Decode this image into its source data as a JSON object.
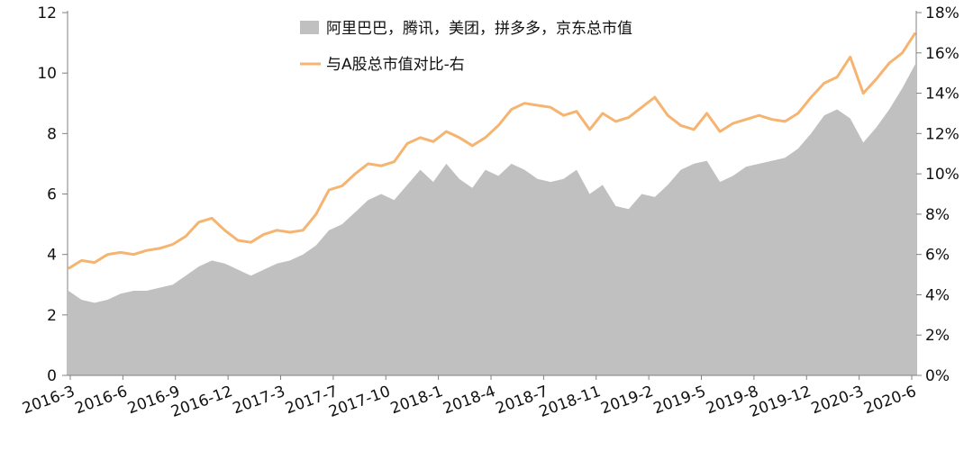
{
  "chart_data": {
    "type": "area",
    "title": "",
    "xlabel": "",
    "ylabel": "",
    "ylim": [
      0,
      12
    ],
    "y2lim": [
      0,
      0.18
    ],
    "yticks": [
      "0",
      "2",
      "4",
      "6",
      "8",
      "10",
      "12"
    ],
    "y2ticks": [
      "0%",
      "2%",
      "4%",
      "6%",
      "8%",
      "10%",
      "12%",
      "14%",
      "16%",
      "18%"
    ],
    "grid": false,
    "legend_position": "top-center",
    "x_tick_labels": [
      "2016-3",
      "2016-6",
      "2016-9",
      "2016-12",
      "2017-3",
      "2017-7",
      "2017-10",
      "2018-1",
      "2018-4",
      "2018-7",
      "2018-11",
      "2019-2",
      "2019-5",
      "2019-8",
      "2019-12",
      "2020-3",
      "2020-6"
    ],
    "series": [
      {
        "name": "阿里巴巴，腾讯，美团，拼多多，京东总市值",
        "type": "area",
        "axis": "left",
        "color": "#c0c0c0",
        "values": [
          2.8,
          2.5,
          2.4,
          2.5,
          2.7,
          2.8,
          2.8,
          2.9,
          3.0,
          3.3,
          3.6,
          3.8,
          3.7,
          3.5,
          3.3,
          3.5,
          3.7,
          3.8,
          4.0,
          4.3,
          4.8,
          5.0,
          5.4,
          5.8,
          6.0,
          5.8,
          6.3,
          6.8,
          6.4,
          7.0,
          6.5,
          6.2,
          6.8,
          6.6,
          7.0,
          6.8,
          6.5,
          6.4,
          6.5,
          6.8,
          6.0,
          6.3,
          5.6,
          5.5,
          6.0,
          5.9,
          6.3,
          6.8,
          7.0,
          7.1,
          6.4,
          6.6,
          6.9,
          7.0,
          7.1,
          7.2,
          7.5,
          8.0,
          8.6,
          8.8,
          8.5,
          7.7,
          8.2,
          8.8,
          9.5,
          10.3
        ]
      },
      {
        "name": "与A股总市值对比-右",
        "type": "line",
        "axis": "right",
        "color": "#f5b470",
        "values": [
          0.053,
          0.057,
          0.056,
          0.06,
          0.061,
          0.06,
          0.062,
          0.063,
          0.065,
          0.069,
          0.076,
          0.078,
          0.072,
          0.067,
          0.066,
          0.07,
          0.072,
          0.071,
          0.072,
          0.08,
          0.092,
          0.094,
          0.1,
          0.105,
          0.104,
          0.106,
          0.115,
          0.118,
          0.116,
          0.121,
          0.118,
          0.114,
          0.118,
          0.124,
          0.132,
          0.135,
          0.134,
          0.133,
          0.129,
          0.131,
          0.122,
          0.13,
          0.126,
          0.128,
          0.133,
          0.138,
          0.129,
          0.124,
          0.122,
          0.13,
          0.121,
          0.125,
          0.127,
          0.129,
          0.127,
          0.126,
          0.13,
          0.138,
          0.145,
          0.148,
          0.158,
          0.14,
          0.147,
          0.155,
          0.16,
          0.17
        ]
      }
    ]
  }
}
